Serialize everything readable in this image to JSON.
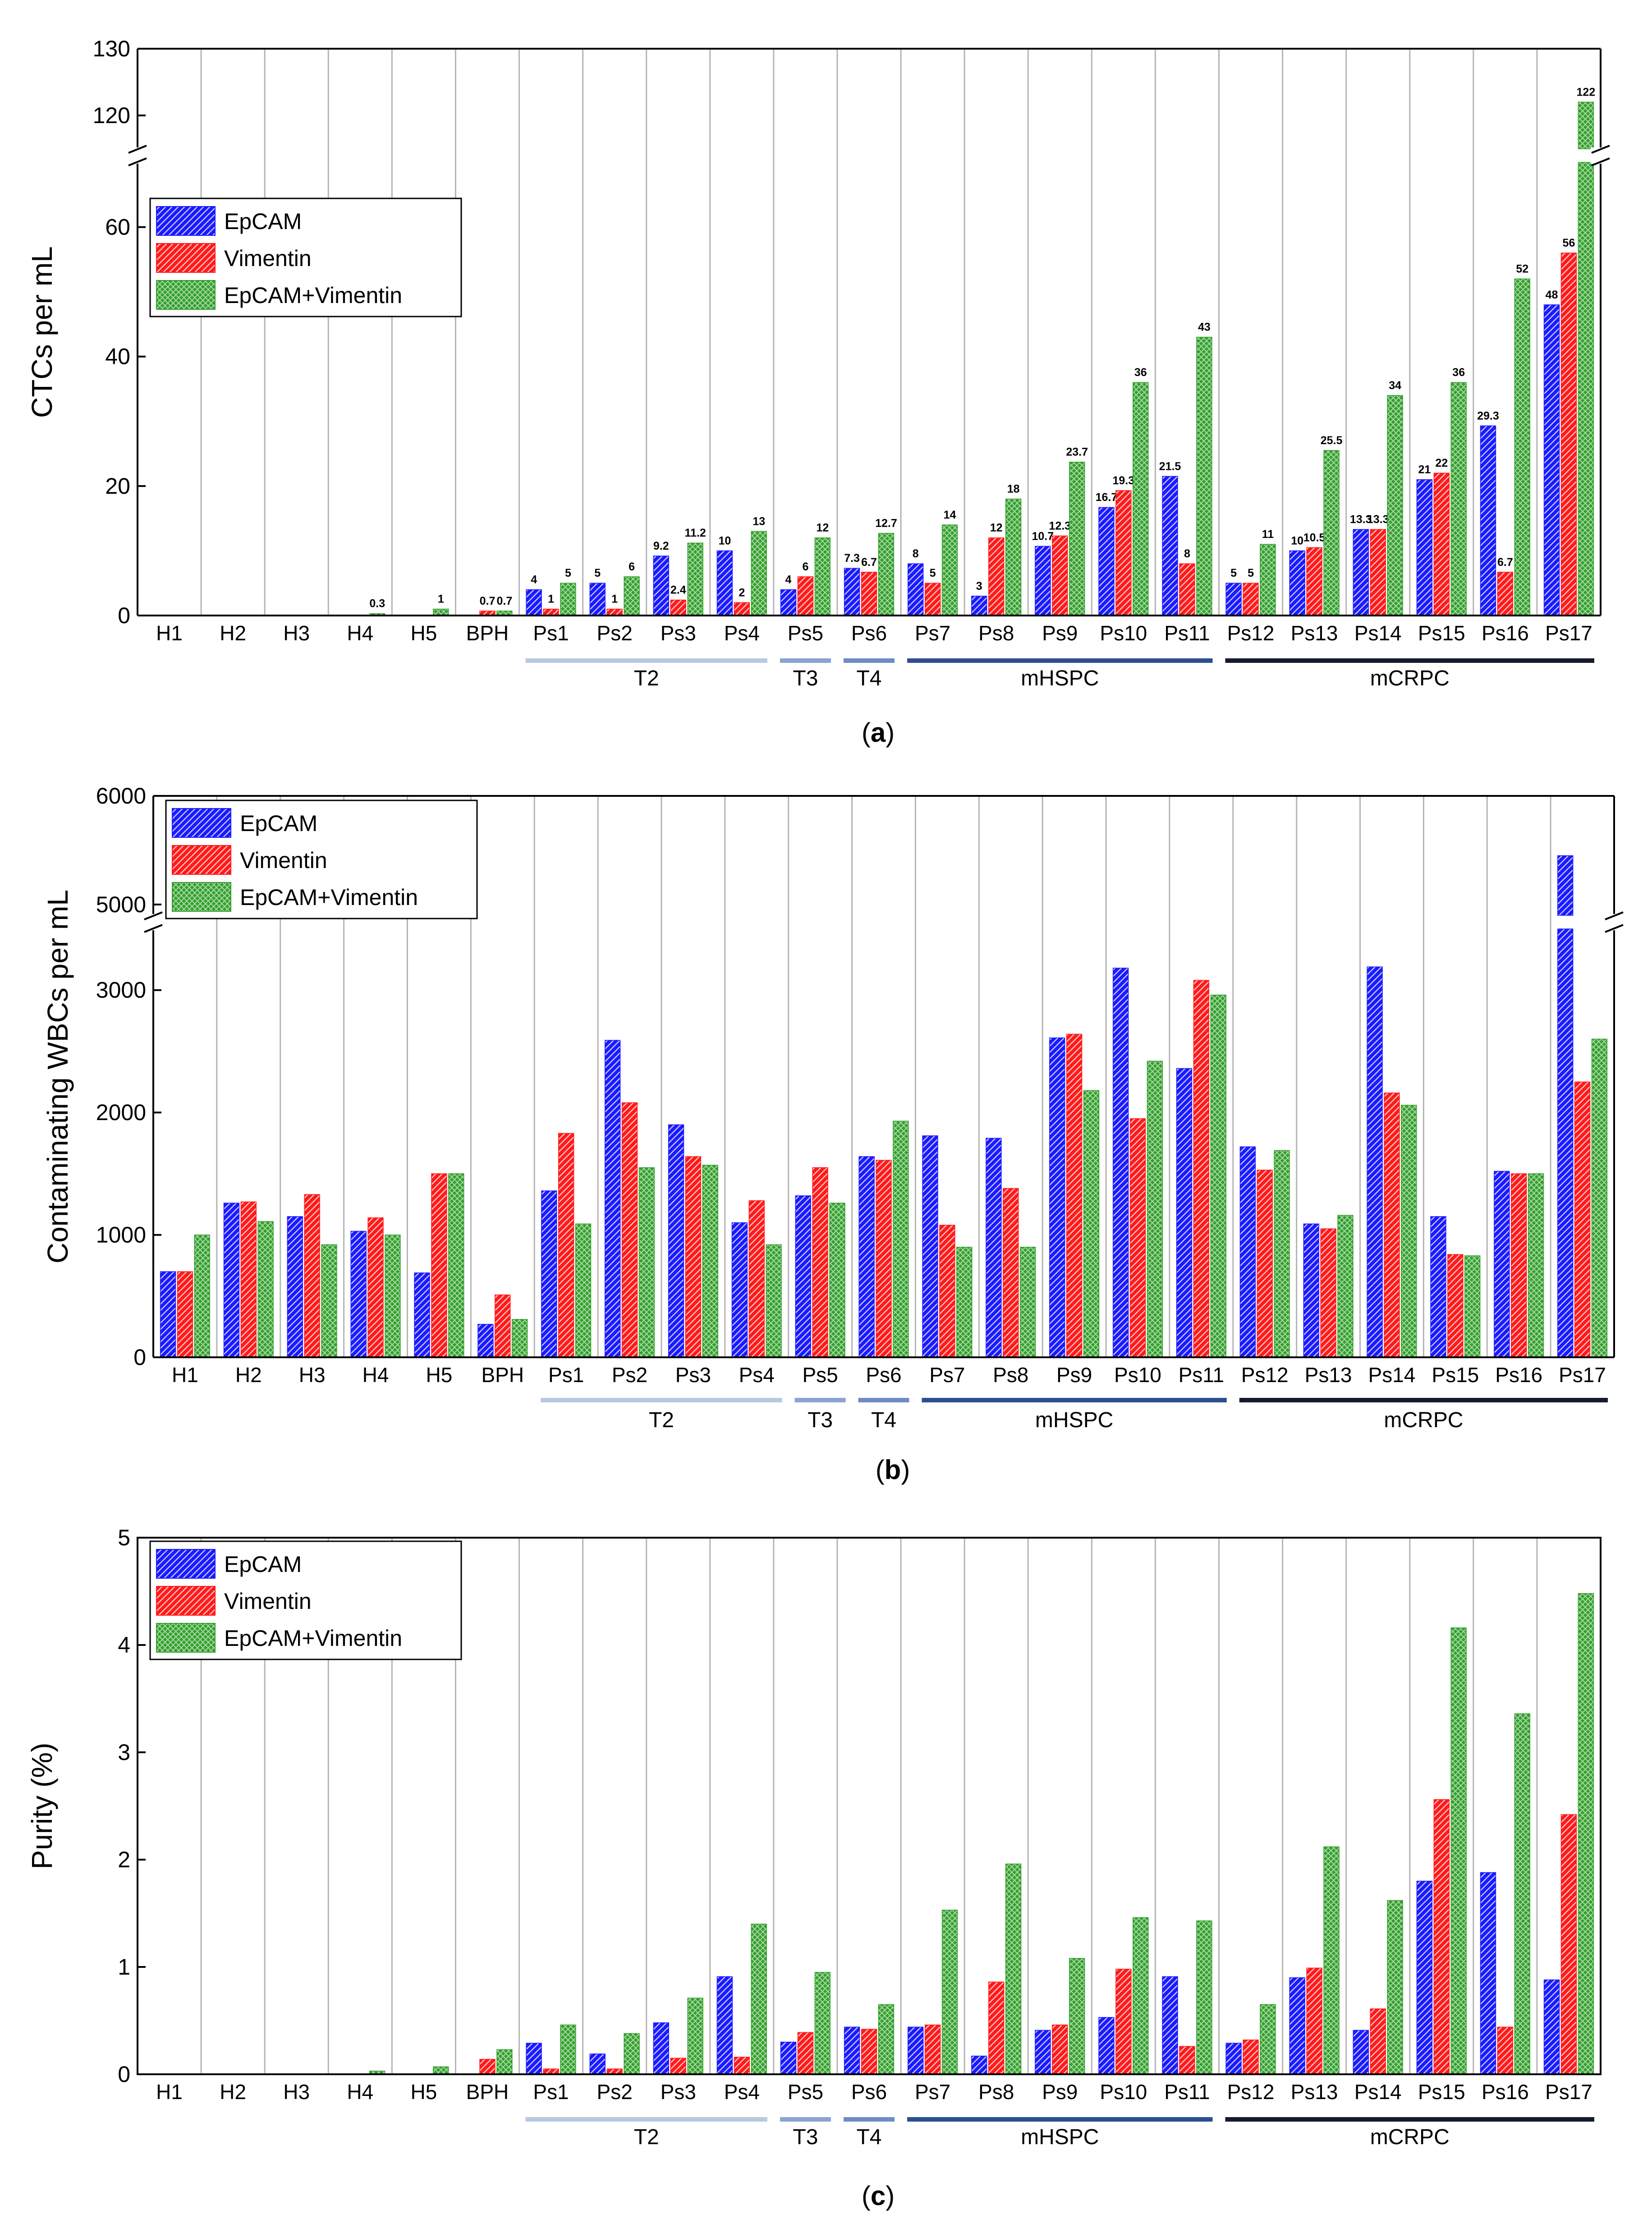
{
  "colors": {
    "epcam": "#1a1aff",
    "vimentin": "#ff1a1a",
    "combo": "#33a02c",
    "axis": "#000000",
    "grid": "#b4b4b4",
    "t2": "#b7c9e2",
    "t3": "#8aa3d1",
    "t4": "#6f8cc4",
    "mhspc": "#2e4f8f",
    "mcrpc": "#141b2e"
  },
  "groups": [
    {
      "label": "T2",
      "from": "Ps1",
      "to": "Ps4",
      "color_key": "t2"
    },
    {
      "label": "T3",
      "from": "Ps5",
      "to": "Ps5",
      "color_key": "t3"
    },
    {
      "label": "T4",
      "from": "Ps6",
      "to": "Ps6",
      "color_key": "t4"
    },
    {
      "label": "mHSPC",
      "from": "Ps7",
      "to": "Ps11",
      "color_key": "mhspc"
    },
    {
      "label": "mCRPC",
      "from": "Ps12",
      "to": "Ps17",
      "color_key": "mcrpc"
    }
  ],
  "chart_data": [
    {
      "type": "bar",
      "panel_label": "(a)",
      "ylabel": "CTCs per mL",
      "categories": [
        "H1",
        "H2",
        "H3",
        "H4",
        "H5",
        "BPH",
        "Ps1",
        "Ps2",
        "Ps3",
        "Ps4",
        "Ps5",
        "Ps6",
        "Ps7",
        "Ps8",
        "Ps9",
        "Ps10",
        "Ps11",
        "Ps12",
        "Ps13",
        "Ps14",
        "Ps15",
        "Ps16",
        "Ps17"
      ],
      "legend": [
        "EpCAM",
        "Vimentin",
        "EpCAM+Vimentin"
      ],
      "lower_ticks": [
        0,
        20,
        40,
        60
      ],
      "upper_ticks": [
        120,
        130
      ],
      "break": [
        70,
        115
      ],
      "series": [
        {
          "name": "EpCAM",
          "values": [
            null,
            null,
            null,
            null,
            null,
            null,
            4,
            5,
            9.2,
            10,
            4,
            7.3,
            8,
            3,
            10.7,
            16.7,
            21.5,
            5,
            10,
            13.3,
            21,
            29.3,
            48
          ]
        },
        {
          "name": "Vimentin",
          "values": [
            null,
            null,
            null,
            null,
            null,
            0.7,
            1,
            1,
            2.4,
            2,
            6,
            6.7,
            5,
            12,
            12.3,
            19.3,
            8,
            5,
            10.5,
            13.3,
            22,
            6.7,
            56
          ]
        },
        {
          "name": "EpCAM+Vimentin",
          "values": [
            null,
            null,
            null,
            0.3,
            1,
            0.7,
            5,
            6,
            11.2,
            13,
            12,
            12.7,
            14,
            18,
            23.7,
            36,
            43,
            11,
            25.5,
            34,
            36,
            52,
            122
          ]
        }
      ],
      "data_labels": [
        [
          "",
          "",
          "",
          "",
          "",
          "",
          "4",
          "5",
          "9.2",
          "10",
          "4",
          "7.3",
          "8",
          "3",
          "10.7",
          "16.7",
          "21.5",
          "5",
          "10",
          "13.3",
          "21",
          "29.3",
          "48"
        ],
        [
          "",
          "",
          "",
          "",
          "",
          "0.7",
          "1",
          "1",
          "2.4",
          "2",
          "6",
          "6.7",
          "5",
          "12",
          "12.3",
          "19.3",
          "8",
          "5",
          "10.5",
          "13.3",
          "22",
          "6.7",
          "56"
        ],
        [
          "",
          "",
          "",
          "0.3",
          "1",
          "0.7",
          "5",
          "6",
          "11.2",
          "13",
          "12",
          "12.7",
          "14",
          "18",
          "23.7",
          "36",
          "43",
          "11",
          "25.5",
          "34",
          "36",
          "52",
          "122"
        ]
      ]
    },
    {
      "type": "bar",
      "panel_label": "(b)",
      "ylabel": "Contaminating WBCs per mL",
      "categories": [
        "H1",
        "H2",
        "H3",
        "H4",
        "H5",
        "BPH",
        "Ps1",
        "Ps2",
        "Ps3",
        "Ps4",
        "Ps5",
        "Ps6",
        "Ps7",
        "Ps8",
        "Ps9",
        "Ps10",
        "Ps11",
        "Ps12",
        "Ps13",
        "Ps14",
        "Ps15",
        "Ps16",
        "Ps17"
      ],
      "legend": [
        "EpCAM",
        "Vimentin",
        "EpCAM+Vimentin"
      ],
      "lower_ticks": [
        0,
        1000,
        2000,
        3000
      ],
      "upper_ticks": [
        5000,
        6000
      ],
      "break": [
        3500,
        4900
      ],
      "series": [
        {
          "name": "EpCAM",
          "values": [
            700,
            1260,
            1150,
            1030,
            690,
            270,
            1360,
            2590,
            1900,
            1100,
            1320,
            1640,
            1810,
            1790,
            2610,
            3180,
            2360,
            1720,
            1090,
            3190,
            1150,
            1520,
            5450
          ]
        },
        {
          "name": "Vimentin",
          "values": [
            700,
            1270,
            1330,
            1140,
            1500,
            510,
            1830,
            2080,
            1640,
            1280,
            1550,
            1610,
            1080,
            1380,
            2640,
            1950,
            3080,
            1530,
            1050,
            2160,
            840,
            1500,
            2250
          ]
        },
        {
          "name": "EpCAM+Vimentin",
          "values": [
            1000,
            1110,
            920,
            1000,
            1500,
            310,
            1090,
            1550,
            1570,
            920,
            1260,
            1930,
            900,
            900,
            2180,
            2420,
            2960,
            1690,
            1160,
            2060,
            830,
            1500,
            2600
          ]
        }
      ]
    },
    {
      "type": "bar",
      "panel_label": "(c)",
      "ylabel": "Purity (%)",
      "categories": [
        "H1",
        "H2",
        "H3",
        "H4",
        "H5",
        "BPH",
        "Ps1",
        "Ps2",
        "Ps3",
        "Ps4",
        "Ps5",
        "Ps6",
        "Ps7",
        "Ps8",
        "Ps9",
        "Ps10",
        "Ps11",
        "Ps12",
        "Ps13",
        "Ps14",
        "Ps15",
        "Ps16",
        "Ps17"
      ],
      "legend": [
        "EpCAM",
        "Vimentin",
        "EpCAM+Vimentin"
      ],
      "ylim": [
        0,
        5
      ],
      "ticks": [
        0,
        1,
        2,
        3,
        4,
        5
      ],
      "series": [
        {
          "name": "EpCAM",
          "values": [
            null,
            null,
            null,
            null,
            null,
            null,
            0.29,
            0.19,
            0.48,
            0.91,
            0.3,
            0.44,
            0.44,
            0.17,
            0.41,
            0.53,
            0.91,
            0.29,
            0.9,
            0.41,
            1.8,
            1.88,
            0.88
          ]
        },
        {
          "name": "Vimentin",
          "values": [
            null,
            null,
            null,
            null,
            null,
            0.14,
            0.05,
            0.05,
            0.15,
            0.16,
            0.39,
            0.42,
            0.46,
            0.86,
            0.46,
            0.98,
            0.26,
            0.32,
            0.99,
            0.61,
            2.56,
            0.44,
            2.42
          ]
        },
        {
          "name": "EpCAM+Vimentin",
          "values": [
            null,
            null,
            null,
            0.03,
            0.07,
            0.23,
            0.46,
            0.38,
            0.71,
            1.4,
            0.95,
            0.65,
            1.53,
            1.96,
            1.08,
            1.46,
            1.43,
            0.65,
            2.12,
            1.62,
            4.16,
            3.36,
            4.48
          ]
        }
      ]
    }
  ]
}
